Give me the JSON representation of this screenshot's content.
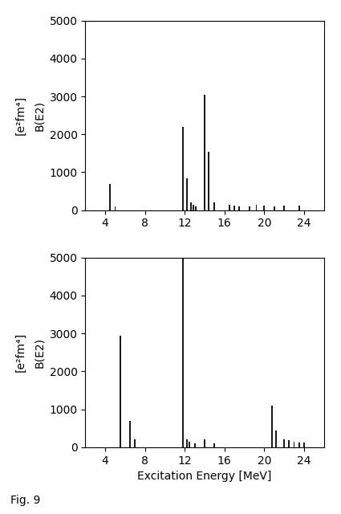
{
  "chart_data": [
    {
      "type": "bar",
      "x": [
        4.5,
        5.0,
        11.8,
        12.2,
        12.6,
        12.9,
        13.1,
        14.0,
        14.4,
        15.0,
        16.5,
        17.0,
        17.5,
        18.5,
        19.2,
        20.0,
        21.0,
        22.0,
        23.5
      ],
      "values": [
        700,
        100,
        2200,
        850,
        200,
        150,
        100,
        3050,
        1550,
        200,
        150,
        130,
        100,
        100,
        150,
        130,
        100,
        130,
        120
      ],
      "color": "#1a1a1a",
      "y_label": "B(E2)",
      "annotations": [
        "[e²fm⁴]"
      ],
      "xlim": [
        2,
        26
      ],
      "xticks": [
        4,
        8,
        12,
        16,
        20,
        24
      ],
      "ylim": [
        0,
        5000
      ],
      "yticks": [
        0,
        1000,
        2000,
        3000,
        4000,
        5000
      ],
      "grid": false
    },
    {
      "type": "bar",
      "x": [
        5.5,
        6.5,
        7.0,
        11.8,
        12.2,
        12.5,
        13.0,
        14.0,
        15.0,
        20.8,
        21.2,
        22.0,
        22.5,
        23.0,
        23.5,
        24.0
      ],
      "values": [
        2950,
        700,
        200,
        5000,
        200,
        150,
        100,
        200,
        100,
        1100,
        450,
        200,
        180,
        150,
        130,
        120
      ],
      "color": "#1a1a1a",
      "x_label": "Excitation Energy [MeV]",
      "y_label": "B(E2)",
      "annotations": [
        "[e²fm⁴]",
        "Fig. 9"
      ],
      "xlim": [
        2,
        26
      ],
      "xticks": [
        4,
        8,
        12,
        16,
        20,
        24
      ],
      "ylim": [
        0,
        5000
      ],
      "yticks": [
        0,
        1000,
        2000,
        3000,
        4000,
        5000
      ],
      "grid": false
    }
  ]
}
